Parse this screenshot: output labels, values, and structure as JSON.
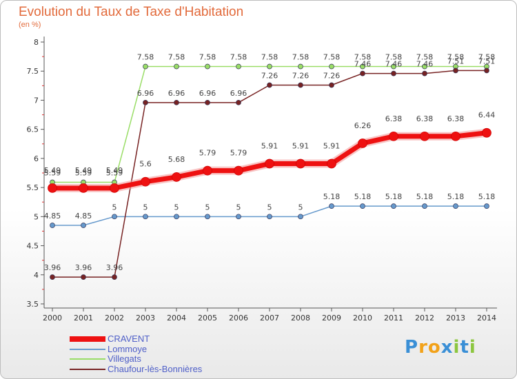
{
  "chart_data": {
    "type": "line",
    "title": "Evolution du Taux de Taxe d'Habitation",
    "subtitle": "(en %)",
    "x": [
      "2000",
      "2001",
      "2002",
      "2003",
      "2004",
      "2005",
      "2006",
      "2007",
      "2008",
      "2009",
      "2010",
      "2011",
      "2012",
      "2013",
      "2014"
    ],
    "yticks": [
      "3.5",
      "4",
      "4.5",
      "5",
      "5.5",
      "6",
      "6.5",
      "7",
      "7.5",
      "8"
    ],
    "ylim": [
      3.5,
      8
    ],
    "grid": false,
    "legend_position": "bottom-left",
    "series": [
      {
        "name": "CRAVENT",
        "color": "#ee1111",
        "values": [
          5.49,
          5.49,
          5.49,
          5.6,
          5.68,
          5.79,
          5.79,
          5.91,
          5.91,
          5.91,
          6.26,
          6.38,
          6.38,
          6.38,
          6.44
        ]
      },
      {
        "name": "Lommoye",
        "color": "#6699cc",
        "values": [
          4.85,
          4.85,
          5,
          5,
          5,
          5,
          5,
          5,
          5,
          5.18,
          5.18,
          5.18,
          5.18,
          5.18,
          5.18
        ]
      },
      {
        "name": "Villegats",
        "color": "#99dd66",
        "values": [
          5.59,
          5.59,
          5.59,
          7.58,
          7.58,
          7.58,
          7.58,
          7.58,
          7.58,
          7.58,
          7.58,
          7.58,
          7.58,
          7.58,
          7.58
        ]
      },
      {
        "name": "Chaufour-lès-Bonnières",
        "color": "#772222",
        "values": [
          3.96,
          3.96,
          3.96,
          6.96,
          6.96,
          6.96,
          6.96,
          7.26,
          7.26,
          7.26,
          7.46,
          7.46,
          7.46,
          7.51,
          7.51
        ]
      }
    ],
    "series_labels": [
      [
        "5.49",
        "5.49",
        "5.49",
        "5.6",
        "5.68",
        "5.79",
        "5.79",
        "5.91",
        "5.91",
        "5.91",
        "6.26",
        "6.38",
        "6.38",
        "6.38",
        "6.44"
      ],
      [
        "4.85",
        "4.85",
        "5",
        "5",
        "5",
        "5",
        "5",
        "5",
        "5",
        "5.18",
        "5.18",
        "5.18",
        "5.18",
        "5.18",
        "5.18"
      ],
      [
        "5.59",
        "5.59",
        "5.59",
        "7.58",
        "7.58",
        "7.58",
        "7.58",
        "7.58",
        "7.58",
        "7.58",
        "7.58",
        "7.58",
        "7.58",
        "7.58",
        "7.58"
      ],
      [
        "3.96",
        "3.96",
        "3.96",
        "6.96",
        "6.96",
        "6.96",
        "6.96",
        "7.26",
        "7.26",
        "7.26",
        "7.46",
        "7.46",
        "7.46",
        "7.51",
        "7.51"
      ]
    ]
  },
  "brand": {
    "logo_letters": [
      "P",
      "r",
      "o",
      "x",
      "i",
      "t",
      "i"
    ],
    "logo_colors": [
      "#3a8fd6",
      "#f2a21a",
      "#f2a21a",
      "#3a8fd6",
      "#8cc63f",
      "#3a8fd6",
      "#8cc63f"
    ]
  }
}
